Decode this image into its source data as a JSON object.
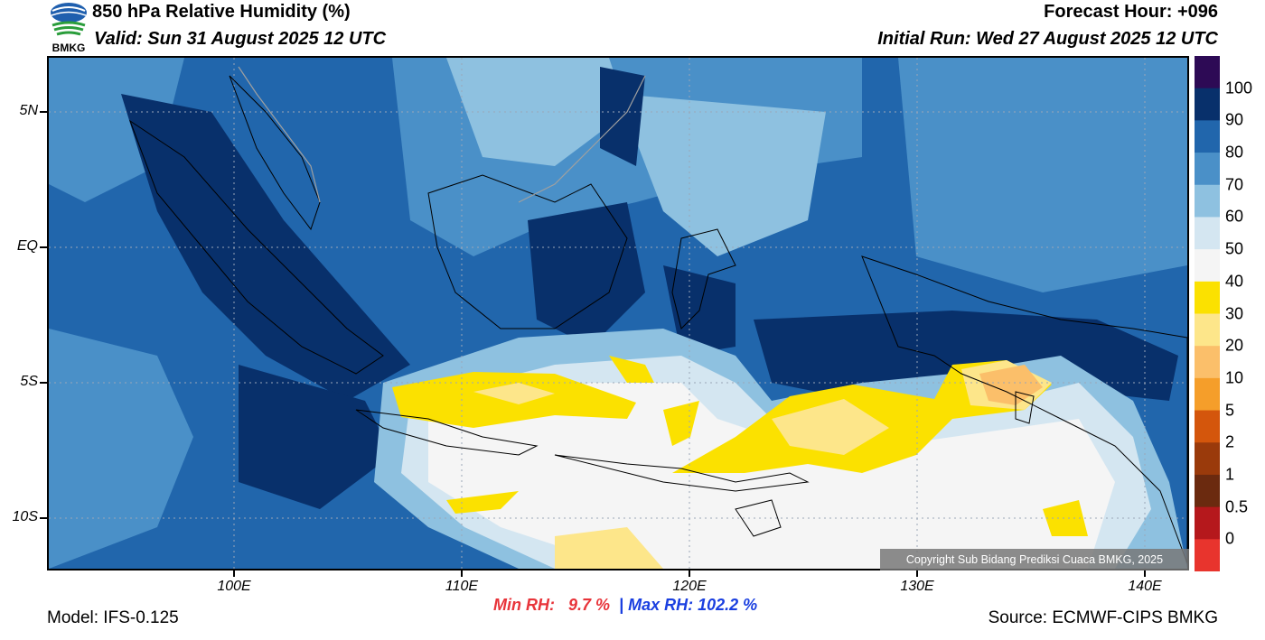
{
  "header": {
    "title": "850 hPa Relative Humidity (%)",
    "valid": "Valid: Sun 31 August 2025 12 UTC",
    "forecast_hour": "Forecast Hour: +096",
    "initial_run": "Initial Run: Wed 27 August 2025 12 UTC",
    "logo_text": "BMKG"
  },
  "map": {
    "lat_labels": [
      "5N",
      "EQ",
      "5S",
      "10S"
    ],
    "lon_labels": [
      "100E",
      "110E",
      "120E",
      "130E",
      "140E"
    ],
    "copyright": "Copyright Sub Bidang Prediksi Cuaca BMKG, 2025"
  },
  "colorbar": {
    "labels": [
      "100",
      "90",
      "80",
      "70",
      "60",
      "50",
      "40",
      "30",
      "20",
      "10",
      "5",
      "2",
      "1",
      "0.5",
      "0"
    ],
    "colors": [
      "#2d0a55",
      "#08306b",
      "#2166ac",
      "#4a90c8",
      "#8ec1e0",
      "#d4e6f1",
      "#f5f5f5",
      "#fbe100",
      "#fde68a",
      "#fbbf6a",
      "#f59e2a",
      "#d4560c",
      "#9a3a0b",
      "#6b2a0f",
      "#b5181c",
      "#e8342d"
    ]
  },
  "stats": {
    "min_label": "Min RH:",
    "min_value": "9.7 %",
    "separator": "|",
    "max_label": "Max RH:",
    "max_value": "102.2 %"
  },
  "footer": {
    "model": "Model: IFS-0.125",
    "source": "Source: ECMWF-CIPS BMKG"
  }
}
